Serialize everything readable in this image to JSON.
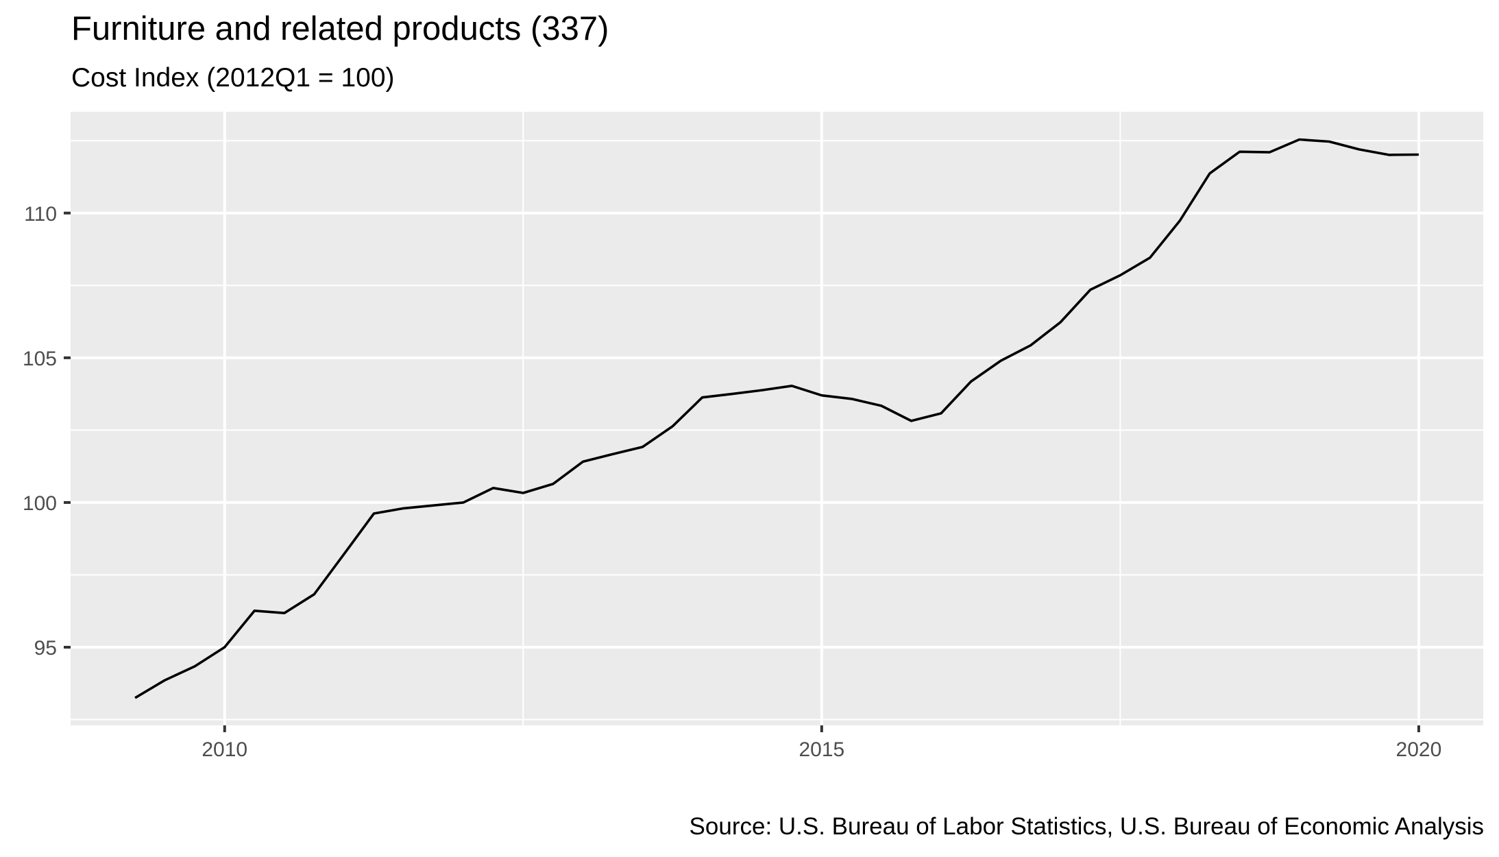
{
  "chart_data": {
    "type": "line",
    "title": "Furniture and related products (337)",
    "subtitle": "Cost Index (2012Q1 = 100)",
    "caption": "Source: U.S. Bureau of Labor Statistics, U.S. Bureau of Economic Analysis",
    "xlabel": "",
    "ylabel": "",
    "xlim": [
      2008.71,
      2020.54
    ],
    "ylim": [
      92.3,
      113.5
    ],
    "x_ticks": [
      2010,
      2015,
      2020
    ],
    "x_tick_labels": [
      "2010",
      "2015",
      "2020"
    ],
    "x_minor": [
      2012.5,
      2017.5
    ],
    "y_ticks": [
      95,
      100,
      105,
      110
    ],
    "y_tick_labels": [
      "95",
      "100",
      "105",
      "110"
    ],
    "y_minor": [
      92.5,
      97.5,
      102.5,
      107.5,
      112.5
    ],
    "grid": true,
    "legend": "none",
    "line_color": "#000000",
    "panel_color": "#ebebeb",
    "grid_color": "#ffffff",
    "series": [
      {
        "name": "Cost Index",
        "x": [
          2009.25,
          2009.5,
          2009.75,
          2010.0,
          2010.25,
          2010.5,
          2010.75,
          2011.0,
          2011.25,
          2011.5,
          2011.75,
          2012.0,
          2012.25,
          2012.5,
          2012.75,
          2013.0,
          2013.25,
          2013.5,
          2013.75,
          2014.0,
          2014.25,
          2014.5,
          2014.75,
          2015.0,
          2015.25,
          2015.5,
          2015.75,
          2016.0,
          2016.25,
          2016.5,
          2016.75,
          2017.0,
          2017.25,
          2017.5,
          2017.75,
          2018.0,
          2018.25,
          2018.5,
          2018.75,
          2019.0,
          2019.25,
          2019.5,
          2019.75,
          2020.0
        ],
        "values": [
          93.25,
          93.86,
          94.34,
          95.0,
          96.26,
          96.18,
          96.83,
          98.22,
          99.62,
          99.8,
          99.9,
          100.0,
          100.5,
          100.33,
          100.64,
          101.41,
          101.67,
          101.92,
          102.63,
          103.63,
          103.75,
          103.88,
          104.03,
          103.7,
          103.58,
          103.34,
          102.82,
          103.08,
          104.18,
          104.9,
          105.43,
          106.23,
          107.35,
          107.85,
          108.46,
          109.74,
          111.37,
          112.12,
          112.1,
          112.54,
          112.47,
          112.2,
          112.01,
          112.02
        ]
      }
    ]
  }
}
